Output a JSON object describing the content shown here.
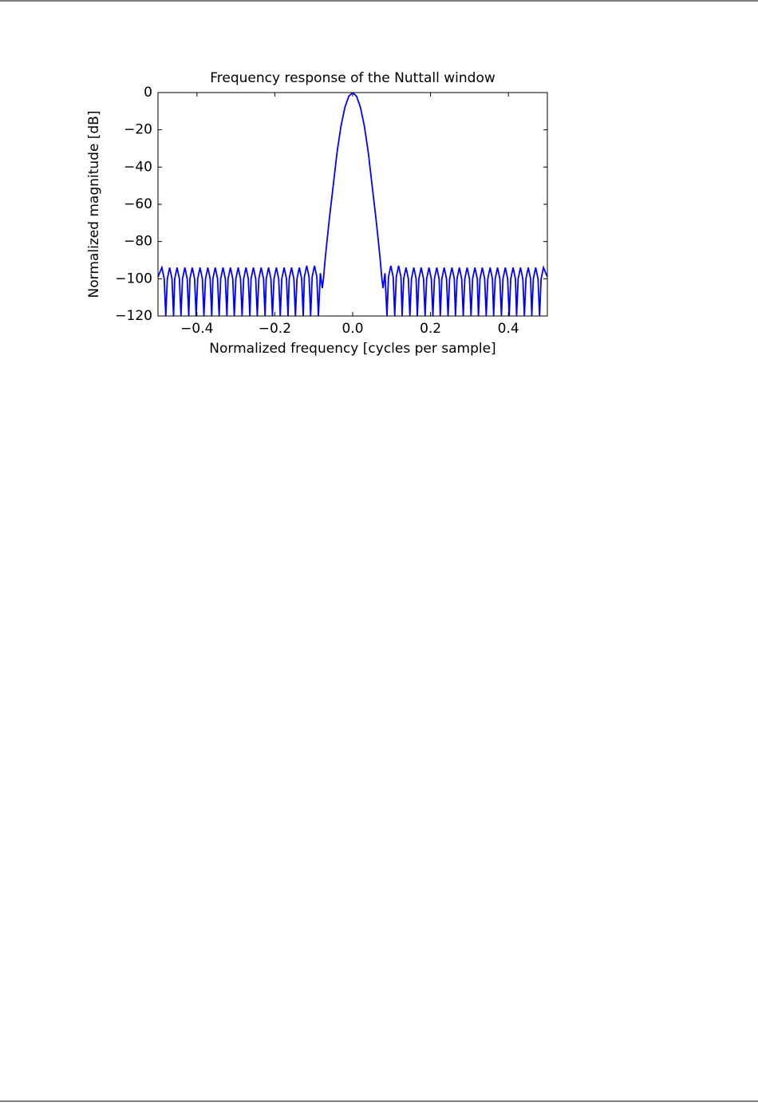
{
  "chart_data": {
    "type": "line",
    "title": "Frequency response of the Nuttall window",
    "xlabel": "Normalized frequency [cycles per sample]",
    "ylabel": "Normalized magnitude [dB]",
    "xlim": [
      -0.5,
      0.5
    ],
    "ylim": [
      -120,
      0
    ],
    "xticks": [
      {
        "value": -0.4,
        "label": "−0.4"
      },
      {
        "value": -0.2,
        "label": "−0.2"
      },
      {
        "value": 0,
        "label": "0.0"
      },
      0.2,
      0.4
    ],
    "yticks": [
      0,
      {
        "value": -20,
        "label": "−20"
      },
      {
        "value": -40,
        "label": "−40"
      },
      {
        "value": -60,
        "label": "−60"
      },
      {
        "value": -80,
        "label": "−80"
      },
      {
        "value": -100,
        "label": "−100"
      },
      {
        "value": -120,
        "label": "−120"
      }
    ],
    "color": "#0000ff",
    "x": [
      -0.5,
      -0.496,
      -0.49,
      -0.484,
      -0.48,
      -0.476,
      -0.47,
      -0.464,
      -0.46,
      -0.457,
      -0.451,
      -0.445,
      -0.441,
      -0.437,
      -0.431,
      -0.425,
      -0.421,
      -0.418,
      -0.412,
      -0.406,
      -0.402,
      -0.398,
      -0.392,
      -0.386,
      -0.382,
      -0.378,
      -0.372,
      -0.366,
      -0.362,
      -0.359,
      -0.353,
      -0.347,
      -0.343,
      -0.339,
      -0.333,
      -0.327,
      -0.323,
      -0.32,
      -0.314,
      -0.308,
      -0.304,
      -0.3,
      -0.294,
      -0.288,
      -0.284,
      -0.28,
      -0.274,
      -0.268,
      -0.264,
      -0.261,
      -0.255,
      -0.249,
      -0.245,
      -0.241,
      -0.235,
      -0.229,
      -0.225,
      -0.222,
      -0.216,
      -0.21,
      -0.206,
      -0.202,
      -0.196,
      -0.19,
      -0.186,
      -0.182,
      -0.176,
      -0.17,
      -0.166,
      -0.163,
      -0.157,
      -0.151,
      -0.147,
      -0.143,
      -0.137,
      -0.131,
      -0.127,
      -0.124,
      -0.118,
      -0.112,
      -0.108,
      -0.104,
      -0.098,
      -0.092,
      -0.088,
      -0.083,
      -0.078,
      -0.075,
      -0.07,
      -0.06,
      -0.05,
      -0.04,
      -0.03,
      -0.02,
      -0.01,
      0,
      0.01,
      0.02,
      0.03,
      0.04,
      0.05,
      0.06,
      0.07,
      0.075,
      0.078,
      0.083,
      0.088,
      0.092,
      0.098,
      0.104,
      0.108,
      0.112,
      0.118,
      0.124,
      0.127,
      0.131,
      0.137,
      0.143,
      0.147,
      0.151,
      0.157,
      0.163,
      0.166,
      0.17,
      0.176,
      0.182,
      0.186,
      0.19,
      0.196,
      0.202,
      0.206,
      0.21,
      0.216,
      0.222,
      0.225,
      0.229,
      0.235,
      0.241,
      0.245,
      0.249,
      0.255,
      0.261,
      0.264,
      0.268,
      0.274,
      0.28,
      0.284,
      0.288,
      0.294,
      0.3,
      0.304,
      0.308,
      0.314,
      0.32,
      0.323,
      0.327,
      0.333,
      0.339,
      0.343,
      0.347,
      0.353,
      0.359,
      0.362,
      0.366,
      0.372,
      0.378,
      0.382,
      0.386,
      0.392,
      0.398,
      0.402,
      0.406,
      0.412,
      0.418,
      0.421,
      0.425,
      0.431,
      0.437,
      0.441,
      0.445,
      0.451,
      0.457,
      0.46,
      0.464,
      0.47,
      0.476,
      0.48,
      0.484,
      0.49,
      0.496,
      0.5
    ],
    "values": [
      -99,
      -97,
      -94,
      -100,
      -120,
      -100,
      -94,
      -100,
      -120,
      -100,
      -94,
      -100,
      -120,
      -100,
      -94,
      -100,
      -120,
      -100,
      -94,
      -100,
      -120,
      -100,
      -94,
      -100,
      -120,
      -100,
      -94,
      -100,
      -120,
      -100,
      -94,
      -100,
      -120,
      -100,
      -94,
      -100,
      -120,
      -100,
      -94,
      -100,
      -120,
      -100,
      -94,
      -100,
      -120,
      -100,
      -94,
      -100,
      -120,
      -100,
      -94,
      -100,
      -120,
      -100,
      -94,
      -100,
      -120,
      -100,
      -94,
      -100,
      -120,
      -100,
      -94,
      -100,
      -120,
      -100,
      -94,
      -100,
      -120,
      -100,
      -94,
      -100,
      -120,
      -100,
      -94,
      -100,
      -120,
      -99,
      -93,
      -99,
      -120,
      -99,
      -93,
      -99,
      -120,
      -97,
      -105,
      -100,
      -88,
      -68,
      -50,
      -32,
      -18,
      -8,
      -2,
      0,
      -2,
      -8,
      -18,
      -32,
      -50,
      -68,
      -88,
      -100,
      -105,
      -97,
      -120,
      -99,
      -93,
      -99,
      -120,
      -99,
      -93,
      -99,
      -120,
      -100,
      -94,
      -100,
      -120,
      -100,
      -94,
      -100,
      -120,
      -100,
      -94,
      -100,
      -120,
      -100,
      -94,
      -100,
      -120,
      -100,
      -94,
      -100,
      -120,
      -100,
      -94,
      -100,
      -120,
      -100,
      -94,
      -100,
      -120,
      -100,
      -94,
      -100,
      -120,
      -100,
      -94,
      -100,
      -120,
      -100,
      -94,
      -100,
      -120,
      -100,
      -94,
      -100,
      -120,
      -100,
      -94,
      -100,
      -120,
      -100,
      -94,
      -100,
      -120,
      -100,
      -94,
      -100,
      -120,
      -100,
      -94,
      -100,
      -120,
      -100,
      -94,
      -100,
      -120,
      -100,
      -94,
      -100,
      -120,
      -100,
      -94,
      -100,
      -120,
      -100,
      -94,
      -97,
      -99
    ]
  }
}
